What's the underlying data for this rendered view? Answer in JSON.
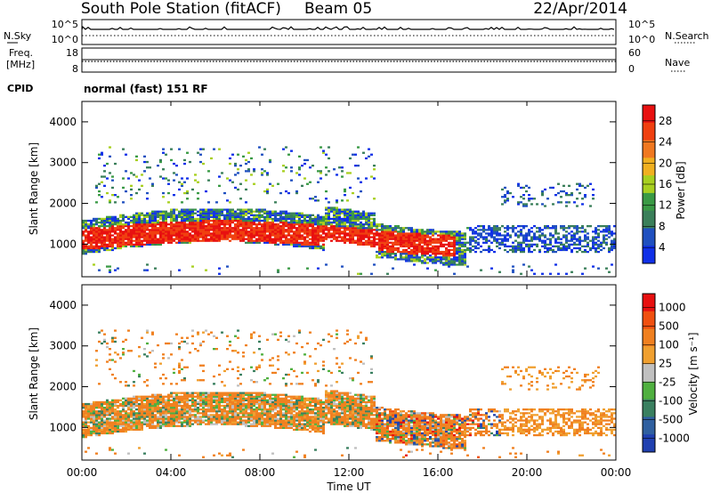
{
  "header": {
    "station": "South Pole Station (fitACF)",
    "beam": "Beam 05",
    "date": "22/Apr/2014"
  },
  "left_labels": {
    "nsky": "N.Sky",
    "freq_line1": "Freq.",
    "freq_line2": "[MHz]",
    "cpid": "CPID"
  },
  "right_labels": {
    "nsearch": "N.Search",
    "nave": "Nave"
  },
  "cpid_text": "normal (fast) 151 RF",
  "noise_axis": {
    "left_ticks": [
      "10^5",
      "10^0"
    ],
    "right_ticks": [
      "10^5",
      "10^0"
    ]
  },
  "freq_axis": {
    "left_ticks": [
      "18",
      "8"
    ],
    "right_ticks": [
      "60",
      "0"
    ]
  },
  "colors": {
    "power_scale": [
      "#1030e8",
      "#2050c0",
      "#3a7f5a",
      "#3a9a45",
      "#a8d020",
      "#f0b020",
      "#f07820",
      "#f04010",
      "#e81010"
    ],
    "velocity_scale": [
      "#e81010",
      "#f05010",
      "#f08020",
      "#f0a030",
      "#c0c0c0",
      "#50b040",
      "#3a8060",
      "#3060a0",
      "#2040b0"
    ]
  },
  "chart_data": [
    {
      "type": "heatmap",
      "name": "power",
      "ylabel": "Slant Range [km]",
      "xlabel": "",
      "y_ticks": [
        "4000",
        "3000",
        "2000",
        "1000"
      ],
      "ylim": [
        200,
        4500
      ],
      "colorbar": {
        "label": "Power [dB]",
        "ticks": [
          "28",
          "24",
          "20",
          "16",
          "12",
          "8",
          "4"
        ]
      },
      "description": "Strong echoes 700-1600 km 00:00-13:00; scattered echoes 2000-3300 km; weaker patches 16:00-24:00"
    },
    {
      "type": "heatmap",
      "name": "velocity",
      "ylabel": "Slant Range [km]",
      "xlabel": "Time UT",
      "y_ticks": [
        "4000",
        "3000",
        "2000",
        "1000"
      ],
      "ylim": [
        200,
        4500
      ],
      "x_ticks": [
        "00:00",
        "04:00",
        "08:00",
        "12:00",
        "16:00",
        "20:00",
        "00:00"
      ],
      "colorbar": {
        "label": "Velocity [m s⁻¹]",
        "ticks": [
          "1000",
          "500",
          "100",
          "25",
          "-25",
          "-100",
          "-500",
          "-1000"
        ]
      }
    }
  ]
}
